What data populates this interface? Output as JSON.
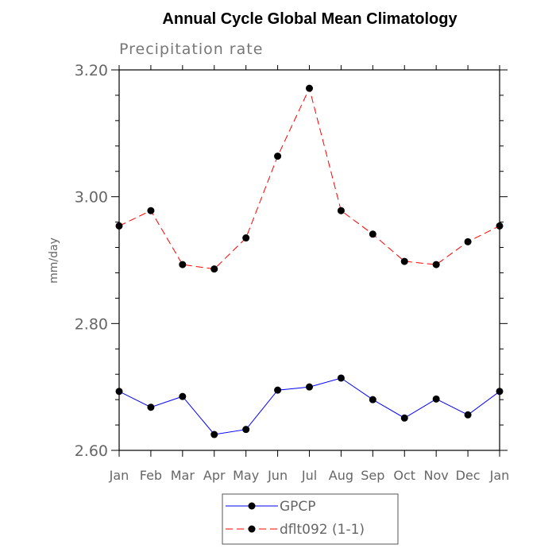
{
  "chart_data": {
    "type": "line",
    "title": "Annual Cycle Global Mean Climatology",
    "subtitle": "Precipitation rate",
    "xlabel": "",
    "ylabel": "mm/day",
    "categories": [
      "Jan",
      "Feb",
      "Mar",
      "Apr",
      "May",
      "Jun",
      "Jul",
      "Aug",
      "Sep",
      "Oct",
      "Nov",
      "Dec",
      "Jan"
    ],
    "ylim": [
      2.6,
      3.2
    ],
    "yticks": [
      "2.60",
      "2.80",
      "3.00",
      "3.20"
    ],
    "grid": false,
    "legend_position": "bottom-center",
    "series": [
      {
        "name": "GPCP",
        "color": "#0000ff",
        "line_style": "solid",
        "marker": "filled-circle",
        "values": [
          2.693,
          2.668,
          2.685,
          2.625,
          2.633,
          2.695,
          2.7,
          2.714,
          2.68,
          2.651,
          2.681,
          2.656,
          2.693
        ]
      },
      {
        "name": "dflt092 (1-1)",
        "color": "#ff0000",
        "line_style": "dashed",
        "marker": "filled-circle",
        "values": [
          2.954,
          2.978,
          2.893,
          2.886,
          2.935,
          3.064,
          3.171,
          2.978,
          2.941,
          2.898,
          2.893,
          2.929,
          2.954
        ]
      }
    ]
  }
}
